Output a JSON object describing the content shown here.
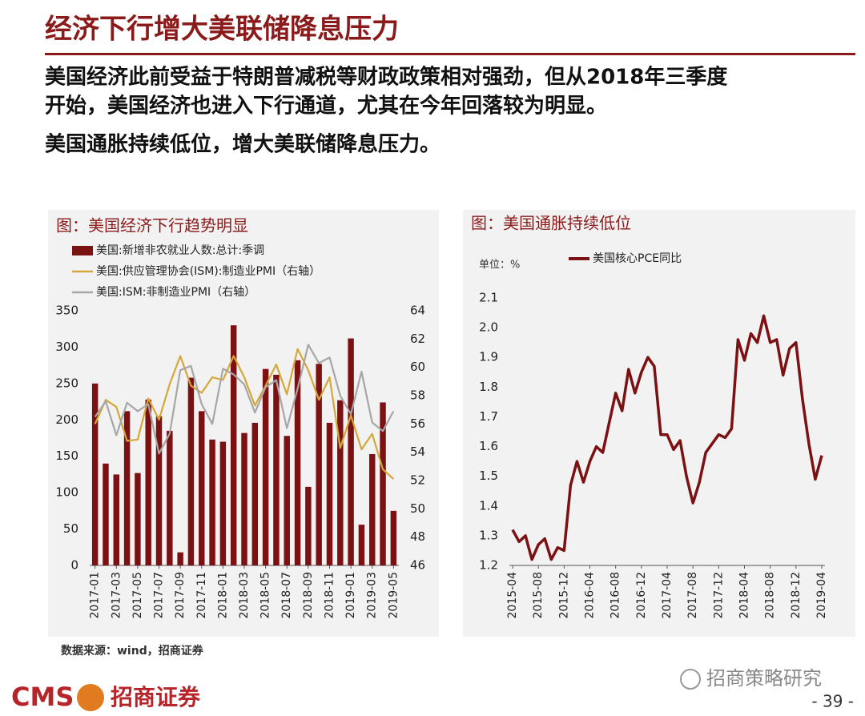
{
  "header": {
    "title": "经济下行增大美联储降息压力"
  },
  "body": [
    "美国经济此前受益于特朗普减税等财政政策相对强劲，但从2018年三季度",
    "开始，美国经济也进入下行通道，尤其在今年回落较为明显。",
    "美国通胀持续低位，增大美联储降息压力。"
  ],
  "chart_data": [
    {
      "type": "combo",
      "title": "图：美国经济下行趋势明显",
      "categories": [
        "2017-01",
        null,
        "2017-03",
        null,
        "2017-05",
        null,
        "2017-07",
        null,
        "2017-09",
        null,
        "2017-11",
        null,
        "2018-01",
        null,
        "2018-03",
        null,
        "2018-05",
        null,
        "2018-07",
        null,
        "2018-09",
        null,
        "2018-11",
        null,
        "2019-01",
        null,
        "2019-03",
        null,
        "2019-05"
      ],
      "ylim": [
        0,
        350
      ],
      "yticks": [
        0,
        50,
        100,
        150,
        200,
        250,
        300,
        350
      ],
      "y2lim": [
        46,
        64
      ],
      "y2ticks": [
        46,
        48,
        50,
        52,
        54,
        56,
        58,
        60,
        62,
        64
      ],
      "series": [
        {
          "name": "美国:新增非农就业人数:总计:季调",
          "kind": "bar",
          "color": "#7b1113",
          "values": [
            250,
            140,
            125,
            212,
            127,
            228,
            205,
            185,
            18,
            258,
            212,
            173,
            170,
            330,
            182,
            196,
            270,
            262,
            178,
            282,
            108,
            277,
            196,
            227,
            312,
            56,
            153,
            224,
            75
          ]
        },
        {
          "name": "美国:供应管理协会(ISM):制造业PMI（右轴）",
          "kind": "line",
          "axis": "y2",
          "color": "#d4a838",
          "values": [
            56.0,
            57.7,
            57.2,
            54.8,
            54.9,
            57.8,
            56.3,
            58.8,
            60.8,
            58.7,
            58.2,
            59.3,
            59.1,
            60.8,
            59.3,
            57.3,
            58.7,
            60.2,
            58.1,
            61.3,
            59.8,
            57.7,
            59.3,
            54.3,
            56.6,
            54.2,
            55.3,
            52.8,
            52.1
          ]
        },
        {
          "name": "美国:ISM:非制造业PMI（右轴）",
          "kind": "line",
          "axis": "y2",
          "color": "#a6a6a6",
          "values": [
            56.5,
            57.6,
            55.2,
            57.5,
            56.9,
            57.4,
            53.9,
            55.3,
            59.8,
            60.1,
            57.4,
            56.0,
            59.9,
            59.5,
            58.8,
            56.8,
            58.6,
            59.1,
            55.7,
            58.5,
            61.6,
            60.3,
            60.7,
            58.0,
            56.7,
            59.7,
            56.1,
            55.5,
            56.9
          ]
        }
      ]
    },
    {
      "type": "line",
      "title": "图：美国通胀持续低位",
      "unit": "单位：%",
      "categories": [
        "2015-04",
        null,
        null,
        null,
        "2015-08",
        null,
        null,
        null,
        "2015-12",
        null,
        null,
        null,
        "2016-04",
        null,
        null,
        null,
        "2016-08",
        null,
        null,
        null,
        "2016-12",
        null,
        null,
        null,
        "2017-04",
        null,
        null,
        null,
        "2017-08",
        null,
        null,
        null,
        "2017-12",
        null,
        null,
        null,
        "2018-04",
        null,
        null,
        null,
        "2018-08",
        null,
        null,
        null,
        "2018-12",
        null,
        null,
        null,
        "2019-04"
      ],
      "ylim": [
        1.2,
        2.1
      ],
      "yticks": [
        1.2,
        1.3,
        1.4,
        1.5,
        1.6,
        1.7,
        1.8,
        1.9,
        {
          "value": 2,
          "label": "2.0"
        },
        2.1
      ],
      "series": [
        {
          "name": "美国核心PCE同比",
          "kind": "line",
          "color": "#7b1113",
          "values": [
            1.32,
            1.28,
            1.3,
            1.22,
            1.27,
            1.29,
            1.22,
            1.26,
            1.25,
            1.47,
            1.55,
            1.48,
            1.55,
            1.6,
            1.58,
            1.68,
            1.78,
            1.72,
            1.86,
            1.78,
            1.85,
            1.9,
            1.87,
            1.64,
            1.64,
            1.59,
            1.62,
            1.5,
            1.41,
            1.48,
            1.58,
            1.61,
            1.64,
            1.63,
            1.66,
            1.96,
            1.89,
            1.98,
            1.95,
            2.04,
            1.95,
            1.96,
            1.84,
            1.93,
            1.95,
            1.76,
            1.61,
            1.49,
            1.57
          ]
        }
      ]
    }
  ],
  "source": "数据来源：wind，招商证券",
  "footer": {
    "logo": "CMS",
    "company": "招商证券",
    "watermark": "招商策略研究",
    "page": "- 39 -"
  }
}
